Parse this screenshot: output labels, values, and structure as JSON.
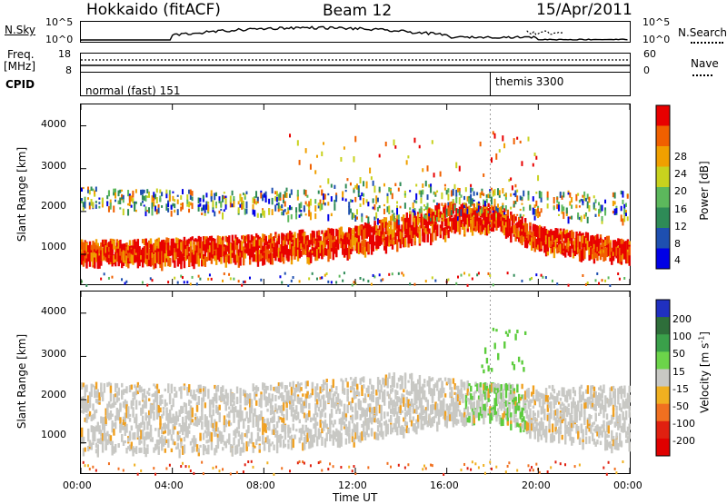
{
  "header": {
    "station": "Hokkaido (fitACF)",
    "beam": "Beam 12",
    "date": "15/Apr/2011"
  },
  "strips": {
    "nsky_label": "N.Sky",
    "nsky_ticks": [
      "10^5",
      "10^0"
    ],
    "nsearch_label": "N.Search",
    "nsearch_ticks": [
      "10^5",
      "10^0"
    ],
    "freq_label_line1": "Freq.",
    "freq_label_line2": "[MHz]",
    "freq_ticks": [
      "18",
      "8"
    ],
    "nave_label": "Nave",
    "nave_ticks": [
      "60",
      "0"
    ],
    "cpid_label": "CPID",
    "cpid_modes": [
      "normal (fast) 151",
      "themis 3300"
    ]
  },
  "chart_data": [
    {
      "type": "heatmap",
      "name": "power-panel",
      "ylabel": "Slant Range [km]",
      "yticks": [
        "1000",
        "2000",
        "3000",
        "4000"
      ],
      "ylim": [
        300,
        4500
      ],
      "colorbar_label": "Power [dB]",
      "colorbar_ticks": [
        "4",
        "8",
        "12",
        "16",
        "20",
        "24",
        "28"
      ],
      "colorbar_colors": [
        "#0000e6",
        "#1e4fb0",
        "#2e8b57",
        "#5cb85c",
        "#c8d21e",
        "#f0a000",
        "#f06000",
        "#e80000"
      ],
      "bands": [
        {
          "level": 28,
          "desc": "core",
          "t": [
            0,
            4,
            8,
            12,
            16,
            18,
            20,
            24
          ],
          "lo": [
            900,
            900,
            950,
            1150,
            1550,
            1700,
            1200,
            950
          ],
          "hi": [
            1350,
            1400,
            1500,
            1700,
            2250,
            2200,
            1700,
            1350
          ]
        },
        {
          "level": 18,
          "desc": "upper",
          "t": [
            0,
            6,
            10,
            14,
            17,
            20,
            24
          ],
          "lo": [
            2100,
            1950,
            1900,
            1800,
            1900,
            1900,
            1800
          ],
          "hi": [
            2600,
            2500,
            2600,
            2800,
            2600,
            2500,
            2500
          ]
        }
      ]
    },
    {
      "type": "heatmap",
      "name": "velocity-panel",
      "ylabel": "Slant Range [km]",
      "yticks": [
        "1000",
        "2000",
        "3000",
        "4000"
      ],
      "ylim": [
        300,
        4500
      ],
      "colorbar_label": "Velocity [m s",
      "colorbar_label_sup": "-1",
      "colorbar_label_end": "]",
      "colorbar_ticks": [
        "200",
        "100",
        "50",
        "15",
        "-15",
        "-50",
        "-100",
        "-200"
      ],
      "colorbar_colors": [
        "#2030c0",
        "#2e6e3a",
        "#3aa04a",
        "#6cd44a",
        "#c8c8c4",
        "#f0b020",
        "#f07020",
        "#e02010",
        "#e00000"
      ],
      "xticks": [
        "00:00",
        "04:00",
        "08:00",
        "12:00",
        "16:00",
        "20:00",
        "00:00"
      ],
      "xlabel": "Time UT"
    }
  ],
  "colors": {
    "gray_scatter": "#c8c8c4",
    "green_scatter": "#5ccc3c",
    "orange_speck": "#f0a020"
  }
}
